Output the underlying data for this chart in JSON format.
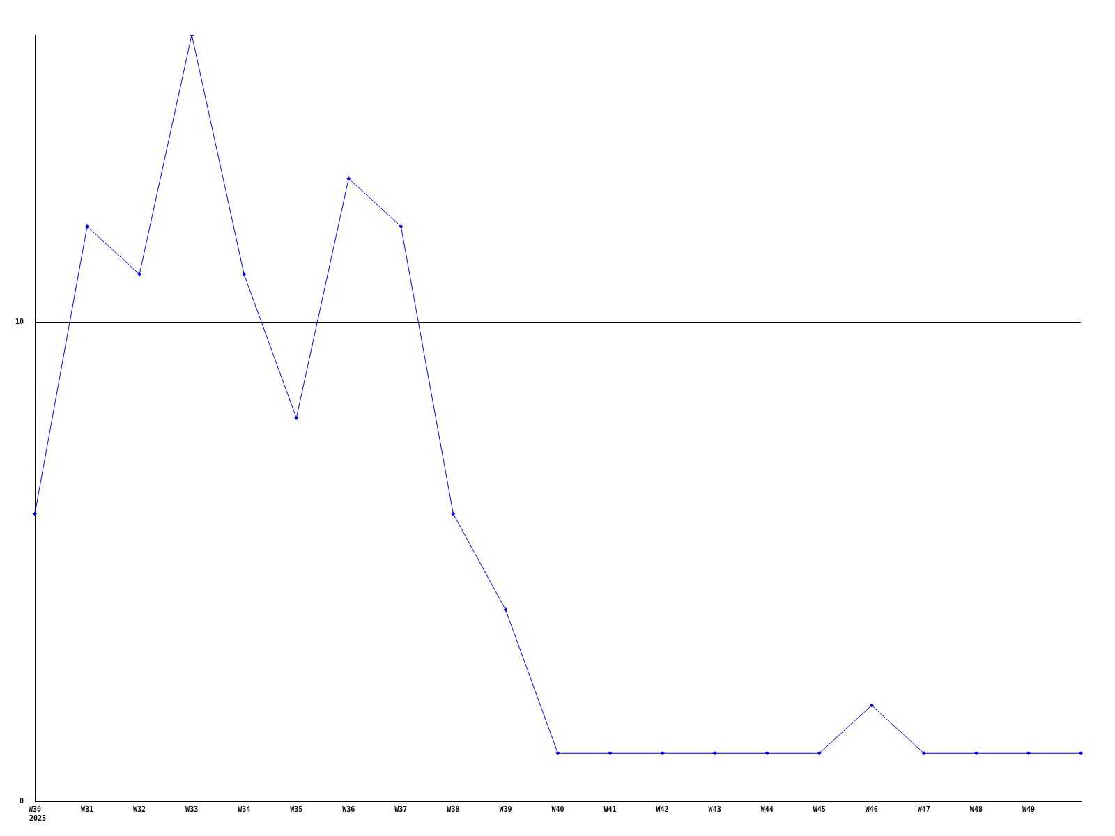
{
  "chart_data": {
    "type": "line",
    "categories": [
      "W30",
      "W31",
      "W32",
      "W33",
      "W34",
      "W35",
      "W36",
      "W37",
      "W38",
      "W39",
      "W40",
      "W41",
      "W42",
      "W43",
      "W44",
      "W45",
      "W46",
      "W47",
      "W48",
      "W49",
      null
    ],
    "series": [
      {
        "color": "#0000ff",
        "values": [
          6,
          12,
          11,
          16,
          11,
          8,
          13,
          12,
          6,
          4,
          1,
          1,
          1,
          1,
          1,
          1,
          2,
          1,
          1,
          1,
          1
        ]
      }
    ],
    "ylim": [
      0,
      16
    ],
    "yticks": [
      0,
      10
    ],
    "grid": "y",
    "legend": false,
    "marker": "diamond",
    "line_style": "solid",
    "annotations": [
      "2025"
    ]
  }
}
